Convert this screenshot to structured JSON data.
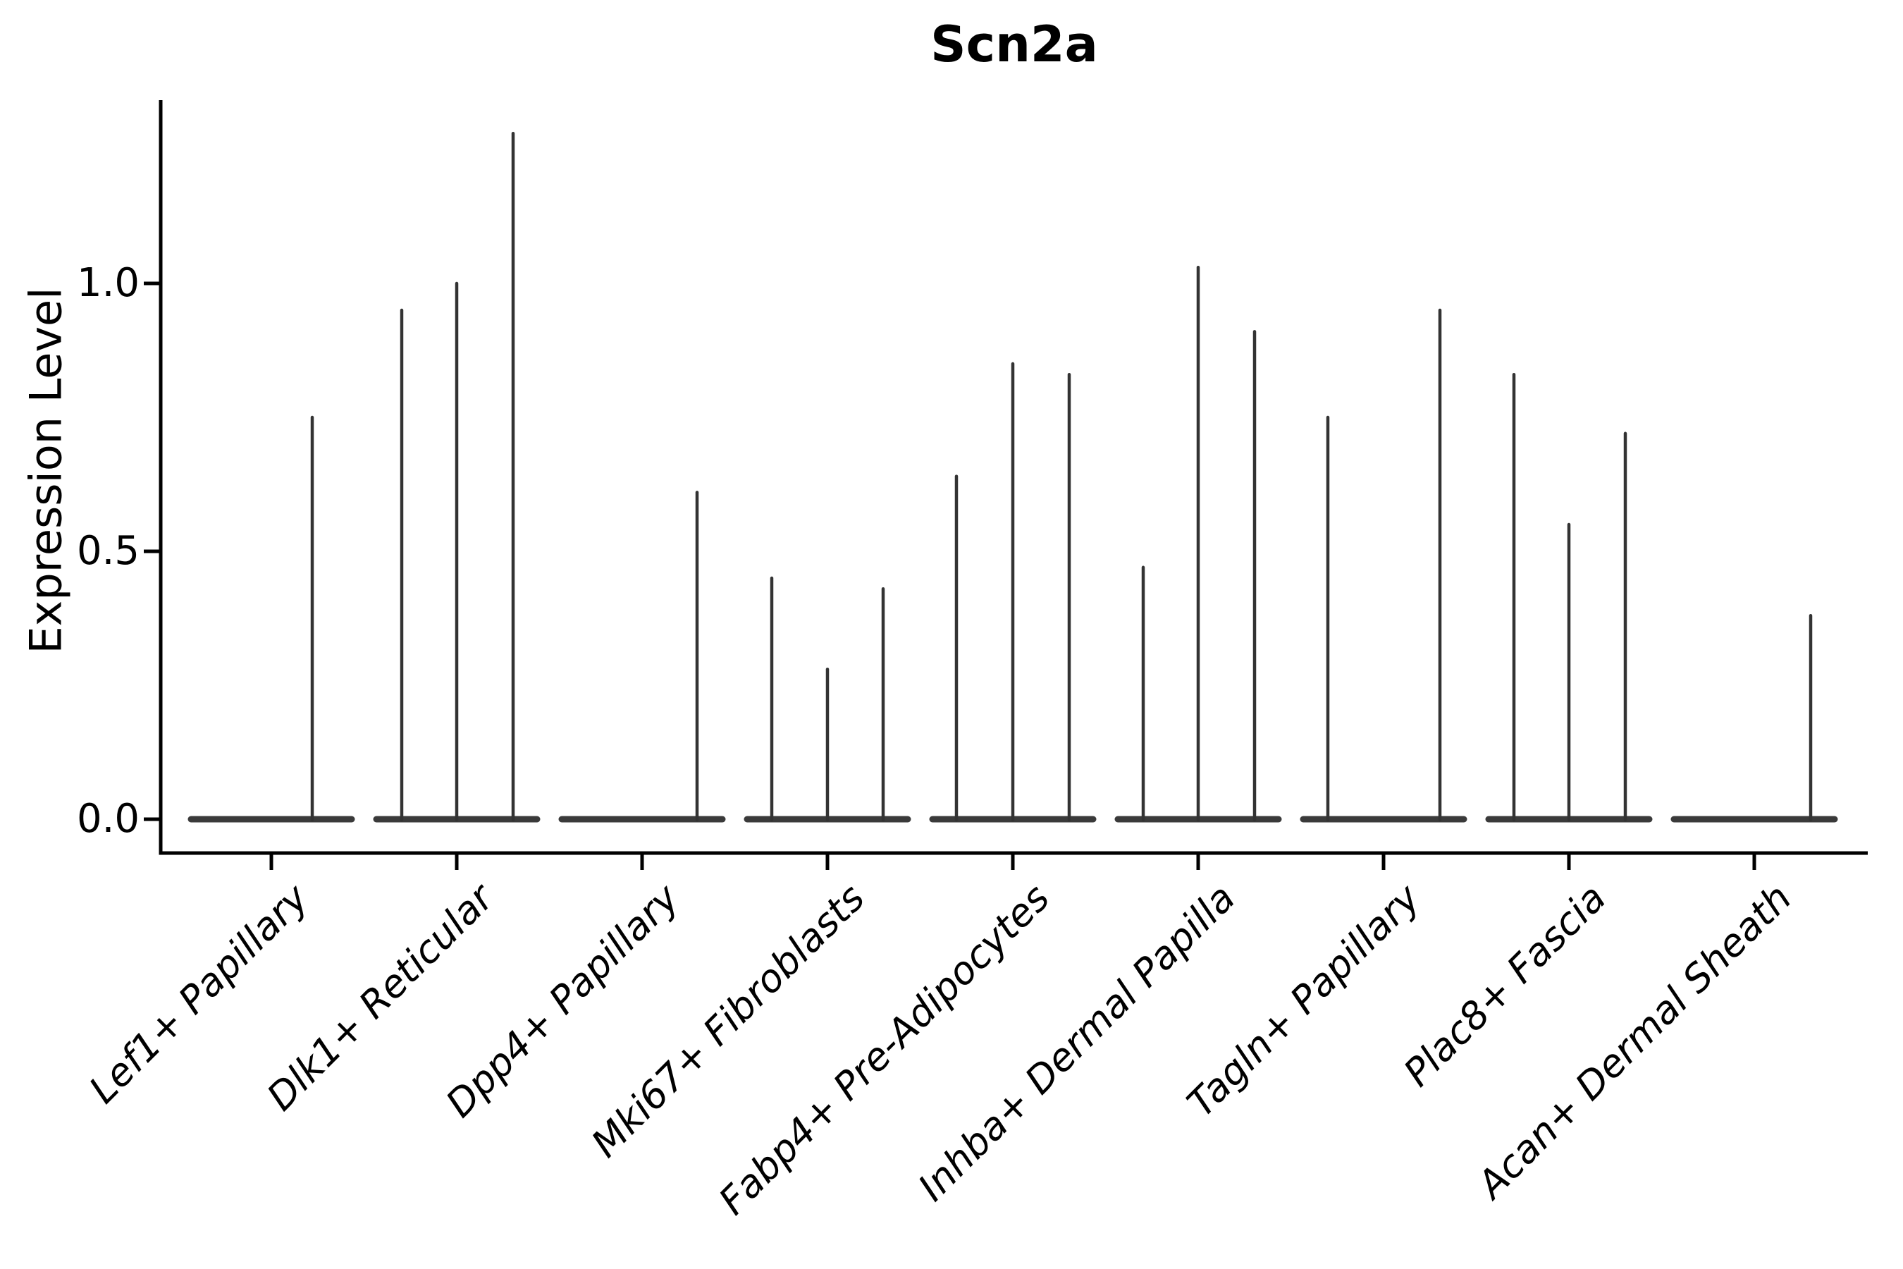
{
  "chart_data": {
    "type": "violin",
    "title": "Scn2a",
    "ylabel": "Expression Level",
    "xlabel": "",
    "ylim": [
      0,
      1.34
    ],
    "yticks": [
      0.0,
      0.5,
      1.0
    ],
    "ytick_labels": [
      "0.0",
      "0.5",
      "1.0"
    ],
    "legend": "none",
    "grid": false,
    "categories": [
      "Lef1+ Papillary",
      "Dlk1+ Reticular",
      "Dpp4+ Papillary",
      "Mki67+ Fibroblasts",
      "Fabp4+ Pre-Adipocytes",
      "Inhba+ Dermal Papilla",
      "Tagln+ Papillary",
      "Plac8+ Fascia",
      "Acan+ Dermal Sheath"
    ],
    "violins": [
      {
        "category": "Lef1+ Papillary",
        "baseline_value": 0.0,
        "spikes": [
          {
            "offset": 58,
            "value": 0.75
          }
        ]
      },
      {
        "category": "Dlk1+ Reticular",
        "baseline_value": 0.0,
        "spikes": [
          {
            "offset": -78,
            "value": 0.95
          },
          {
            "offset": 0,
            "value": 1.0
          },
          {
            "offset": 80,
            "value": 1.28
          }
        ]
      },
      {
        "category": "Dpp4+ Papillary",
        "baseline_value": 0.0,
        "spikes": [
          {
            "offset": 78,
            "value": 0.61
          }
        ]
      },
      {
        "category": "Mki67+ Fibroblasts",
        "baseline_value": 0.0,
        "spikes": [
          {
            "offset": -79,
            "value": 0.45
          },
          {
            "offset": 0,
            "value": 0.28
          },
          {
            "offset": 79,
            "value": 0.43
          }
        ]
      },
      {
        "category": "Fabp4+ Pre-Adipocytes",
        "baseline_value": 0.0,
        "spikes": [
          {
            "offset": -80,
            "value": 0.64
          },
          {
            "offset": 0,
            "value": 0.85
          },
          {
            "offset": 80,
            "value": 0.83
          }
        ]
      },
      {
        "category": "Inhba+ Dermal Papilla",
        "baseline_value": 0.0,
        "spikes": [
          {
            "offset": -78,
            "value": 0.47
          },
          {
            "offset": 0,
            "value": 1.03
          },
          {
            "offset": 80,
            "value": 0.91
          }
        ]
      },
      {
        "category": "Tagln+ Papillary",
        "baseline_value": 0.0,
        "spikes": [
          {
            "offset": -79,
            "value": 0.75
          },
          {
            "offset": 80,
            "value": 0.95
          }
        ]
      },
      {
        "category": "Plac8+ Fascia",
        "baseline_value": 0.0,
        "spikes": [
          {
            "offset": -78,
            "value": 0.83
          },
          {
            "offset": 0,
            "value": 0.55
          },
          {
            "offset": 80,
            "value": 0.72
          }
        ]
      },
      {
        "category": "Acan+ Dermal Sheath",
        "baseline_value": 0.0,
        "spikes": [
          {
            "offset": 80,
            "value": 0.38
          }
        ]
      }
    ],
    "colors": {
      "axis": "#000000",
      "violin_body": "#3a3a3a",
      "spike": "#333333",
      "text": "#000000",
      "background": "#ffffff"
    }
  }
}
